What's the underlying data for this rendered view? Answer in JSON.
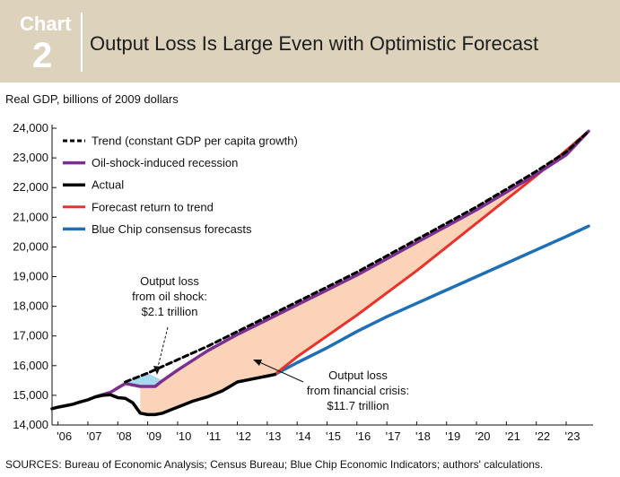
{
  "header": {
    "label": "Chart",
    "number": "2",
    "title": "Output Loss Is Large Even with Optimistic Forecast"
  },
  "unit_label": "Real GDP, billions of 2009 dollars",
  "source_note": "SOURCES: Bureau of Economic Analysis; Census Bureau; Blue Chip Economic Indicators; authors' calculations.",
  "colors": {
    "header_bg": "#ddd3bd",
    "trend": "#000000",
    "oil": "#7b2f8e",
    "actual": "#000000",
    "forecast": "#e8332a",
    "bluechip": "#1f6fb5",
    "oil_fill": "#a6d9ee",
    "crisis_fill": "#fbd3b9"
  },
  "chart_data": {
    "type": "line",
    "ylim": [
      14000,
      24000
    ],
    "yticks": [
      14000,
      15000,
      16000,
      17000,
      18000,
      19000,
      20000,
      21000,
      22000,
      23000,
      24000
    ],
    "ytick_labels": [
      "14,000",
      "15,000",
      "16,000",
      "17,000",
      "18,000",
      "19,000",
      "20,000",
      "21,000",
      "22,000",
      "23,000",
      "24,000"
    ],
    "xlim": [
      2005.8,
      2023.9
    ],
    "xticks": [
      2006,
      2007,
      2008,
      2009,
      2010,
      2011,
      2012,
      2013,
      2014,
      2015,
      2016,
      2017,
      2018,
      2019,
      2020,
      2021,
      2022,
      2023
    ],
    "xtick_labels": [
      "'06",
      "'07",
      "'08",
      "'09",
      "'10",
      "'11",
      "'12",
      "'13",
      "'14",
      "'15",
      "'16",
      "'17",
      "'18",
      "'19",
      "'20",
      "'21",
      "'22",
      "'23"
    ],
    "series": [
      {
        "name": "Trend (constant GDP per capita growth)",
        "style": "dashed",
        "x": [
          2008.25,
          2009,
          2010,
          2011,
          2012,
          2013,
          2014,
          2015,
          2016,
          2017,
          2018,
          2019,
          2020,
          2021,
          2022,
          2023,
          2023.75
        ],
        "y": [
          15450,
          15750,
          16200,
          16650,
          17150,
          17650,
          18150,
          18650,
          19150,
          19700,
          20250,
          20800,
          21350,
          21950,
          22550,
          23200,
          23900
        ]
      },
      {
        "name": "Oil-shock-induced recession",
        "style": "solid",
        "x": [
          2007.25,
          2007.75,
          2008.25,
          2008.75,
          2009,
          2009.25,
          2009.5,
          2010,
          2011,
          2012,
          2013,
          2014,
          2015,
          2016,
          2017,
          2018,
          2019,
          2020,
          2021,
          2022,
          2023,
          2023.75
        ],
        "y": [
          14950,
          15100,
          15400,
          15300,
          15300,
          15300,
          15500,
          15850,
          16500,
          17050,
          17550,
          18050,
          18550,
          19050,
          19600,
          20150,
          20700,
          21250,
          21850,
          22450,
          23100,
          23900
        ]
      },
      {
        "name": "Actual",
        "style": "solid",
        "x": [
          2005.8,
          2006,
          2006.25,
          2006.5,
          2006.75,
          2007,
          2007.25,
          2007.5,
          2007.75,
          2008,
          2008.25,
          2008.5,
          2008.75,
          2009,
          2009.25,
          2009.5,
          2009.75,
          2010,
          2010.5,
          2011,
          2011.5,
          2012,
          2012.5,
          2013,
          2013.25
        ],
        "y": [
          14550,
          14600,
          14650,
          14700,
          14780,
          14850,
          14950,
          15000,
          15020,
          14920,
          14900,
          14750,
          14400,
          14350,
          14350,
          14400,
          14500,
          14600,
          14800,
          14950,
          15150,
          15450,
          15550,
          15650,
          15700
        ]
      },
      {
        "name": "Forecast return to trend",
        "style": "solid",
        "x": [
          2013.25,
          2014,
          2015,
          2016,
          2017,
          2018,
          2019,
          2020,
          2021,
          2022,
          2023,
          2023.75
        ],
        "y": [
          15700,
          16300,
          17000,
          17700,
          18450,
          19200,
          20000,
          20800,
          21600,
          22400,
          23250,
          23900
        ]
      },
      {
        "name": "Blue Chip consensus forecasts",
        "style": "solid",
        "x": [
          2013.25,
          2014,
          2015,
          2016,
          2017,
          2018,
          2019,
          2020,
          2021,
          2022,
          2023,
          2023.75
        ],
        "y": [
          15700,
          16100,
          16600,
          17150,
          17650,
          18100,
          18550,
          19000,
          19450,
          19900,
          20350,
          20700
        ]
      }
    ],
    "annotations": [
      {
        "lines": [
          "Output loss",
          "from oil shock:",
          "$2.1 trillion"
        ]
      },
      {
        "lines": [
          "Output loss",
          "from financial crisis:",
          "$11.7 trillion"
        ]
      }
    ]
  }
}
